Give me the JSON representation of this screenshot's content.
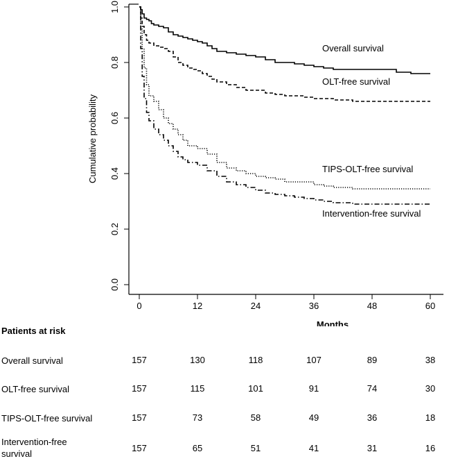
{
  "chart_data": {
    "type": "line",
    "xlabel": "Months",
    "ylabel": "Cumulative probability",
    "xlim": [
      0,
      60
    ],
    "ylim": [
      0,
      1
    ],
    "xticks": [
      "0",
      "12",
      "24",
      "36",
      "48",
      "60"
    ],
    "yticks": [
      "0.0",
      "0.2",
      "0.4",
      "0.6",
      "0.8",
      "1.0"
    ],
    "grid": false,
    "series": [
      {
        "name": "Overall survival",
        "style": "solid",
        "x": [
          0,
          0.3,
          0.6,
          1,
          1.5,
          2,
          2.5,
          3,
          4,
          5,
          6,
          7,
          8,
          9,
          10,
          11,
          12,
          13,
          14,
          15,
          16,
          18,
          20,
          22,
          24,
          26,
          28,
          30,
          32,
          34,
          36,
          38,
          40,
          44,
          48,
          50,
          53,
          56,
          60
        ],
        "y": [
          1.0,
          0.99,
          0.975,
          0.96,
          0.955,
          0.95,
          0.94,
          0.935,
          0.93,
          0.925,
          0.91,
          0.9,
          0.895,
          0.89,
          0.885,
          0.88,
          0.875,
          0.87,
          0.86,
          0.85,
          0.84,
          0.835,
          0.83,
          0.825,
          0.82,
          0.81,
          0.8,
          0.8,
          0.795,
          0.79,
          0.785,
          0.78,
          0.775,
          0.775,
          0.775,
          0.775,
          0.765,
          0.76,
          0.76
        ]
      },
      {
        "name": "OLT-free survival",
        "style": "dashed",
        "x": [
          0,
          0.3,
          0.6,
          1,
          1.5,
          2,
          3,
          4,
          5,
          6,
          7,
          8,
          9,
          10,
          11,
          12,
          13,
          14,
          15,
          16,
          18,
          20,
          22,
          24,
          26,
          28,
          30,
          32,
          34,
          36,
          38,
          40,
          42,
          44,
          48,
          52,
          56,
          60
        ],
        "y": [
          1.0,
          0.96,
          0.93,
          0.9,
          0.88,
          0.87,
          0.86,
          0.855,
          0.85,
          0.84,
          0.82,
          0.8,
          0.79,
          0.78,
          0.775,
          0.77,
          0.76,
          0.75,
          0.74,
          0.73,
          0.72,
          0.71,
          0.7,
          0.7,
          0.69,
          0.685,
          0.68,
          0.68,
          0.675,
          0.67,
          0.67,
          0.665,
          0.665,
          0.66,
          0.66,
          0.66,
          0.66,
          0.66
        ]
      },
      {
        "name": "TIPS-OLT-free survival",
        "style": "dotted",
        "x": [
          0,
          0.3,
          0.6,
          1,
          1.5,
          2,
          3,
          4,
          5,
          6,
          7,
          8,
          9,
          10,
          12,
          14,
          16,
          18,
          20,
          22,
          24,
          26,
          28,
          30,
          32,
          34,
          36,
          38,
          40,
          44,
          48,
          52,
          56,
          60
        ],
        "y": [
          1.0,
          0.92,
          0.85,
          0.78,
          0.72,
          0.68,
          0.66,
          0.63,
          0.6,
          0.58,
          0.56,
          0.54,
          0.52,
          0.5,
          0.49,
          0.47,
          0.44,
          0.42,
          0.41,
          0.4,
          0.39,
          0.385,
          0.38,
          0.37,
          0.37,
          0.37,
          0.36,
          0.355,
          0.35,
          0.345,
          0.345,
          0.345,
          0.345,
          0.345
        ]
      },
      {
        "name": "Intervention-free survival",
        "style": "dashdot",
        "x": [
          0,
          0.3,
          0.6,
          1,
          1.5,
          2,
          3,
          4,
          5,
          6,
          7,
          8,
          9,
          10,
          12,
          14,
          16,
          18,
          20,
          22,
          24,
          26,
          28,
          30,
          32,
          34,
          36,
          38,
          40,
          44,
          48,
          52,
          56,
          60
        ],
        "y": [
          1.0,
          0.85,
          0.75,
          0.67,
          0.62,
          0.59,
          0.56,
          0.54,
          0.52,
          0.5,
          0.48,
          0.46,
          0.45,
          0.44,
          0.43,
          0.41,
          0.39,
          0.37,
          0.36,
          0.35,
          0.34,
          0.33,
          0.325,
          0.32,
          0.315,
          0.31,
          0.305,
          0.3,
          0.295,
          0.29,
          0.29,
          0.29,
          0.29,
          0.29
        ]
      }
    ],
    "annotations": [
      {
        "text": "Overall survival",
        "x": 38,
        "y": 0.84
      },
      {
        "text": "OLT-free survival",
        "x": 38,
        "y": 0.72
      },
      {
        "text": "TIPS-OLT-free survival",
        "x": 38,
        "y": 0.405
      },
      {
        "text": "Intervention-free survival",
        "x": 38,
        "y": 0.245
      }
    ]
  },
  "risk_table": {
    "title": "Patients at risk",
    "rows": [
      {
        "label": "Overall survival",
        "values": [
          "157",
          "130",
          "118",
          "107",
          "89",
          "38"
        ]
      },
      {
        "label": "OLT-free survival",
        "values": [
          "157",
          "115",
          "101",
          "91",
          "74",
          "30"
        ]
      },
      {
        "label": "TIPS-OLT-free survival",
        "values": [
          "157",
          "73",
          "58",
          "49",
          "36",
          "18"
        ]
      },
      {
        "label": "Intervention-free\nsurvival",
        "values": [
          "157",
          "65",
          "51",
          "41",
          "31",
          "16"
        ]
      }
    ]
  }
}
